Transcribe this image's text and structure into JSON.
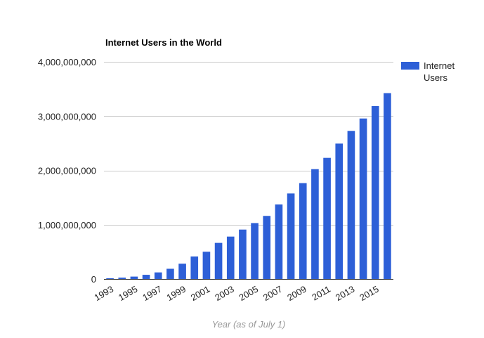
{
  "chart_data": {
    "type": "bar",
    "title": "Internet Users in the World",
    "xlabel": "Year (as of July 1)",
    "ylabel": "",
    "ylim": [
      0,
      4000000000
    ],
    "yticks": [
      0,
      1000000000,
      2000000000,
      3000000000,
      4000000000
    ],
    "ytick_labels": [
      "0",
      "1,000,000,000",
      "2,000,000,000",
      "3,000,000,000",
      "4,000,000,000"
    ],
    "categories": [
      "1993",
      "1994",
      "1995",
      "1996",
      "1997",
      "1998",
      "1999",
      "2000",
      "2001",
      "2002",
      "2003",
      "2004",
      "2005",
      "2006",
      "2007",
      "2008",
      "2009",
      "2010",
      "2011",
      "2012",
      "2013",
      "2014",
      "2015",
      "2016"
    ],
    "xtick_labels_shown": [
      "1993",
      "1995",
      "1997",
      "1999",
      "2001",
      "2003",
      "2005",
      "2007",
      "2009",
      "2011",
      "2013",
      "2015"
    ],
    "series": [
      {
        "name": "Internet Users",
        "color": "#2d5fd7",
        "values": [
          14000000,
          25000000,
          44000000,
          77000000,
          121000000,
          188000000,
          281000000,
          414000000,
          502000000,
          665000000,
          781000000,
          910000000,
          1030000000,
          1162000000,
          1373000000,
          1575000000,
          1766000000,
          2023000000,
          2231000000,
          2494000000,
          2728000000,
          2956000000,
          3185000000,
          3424000000
        ]
      }
    ],
    "grid": true,
    "legend_position": "right"
  }
}
